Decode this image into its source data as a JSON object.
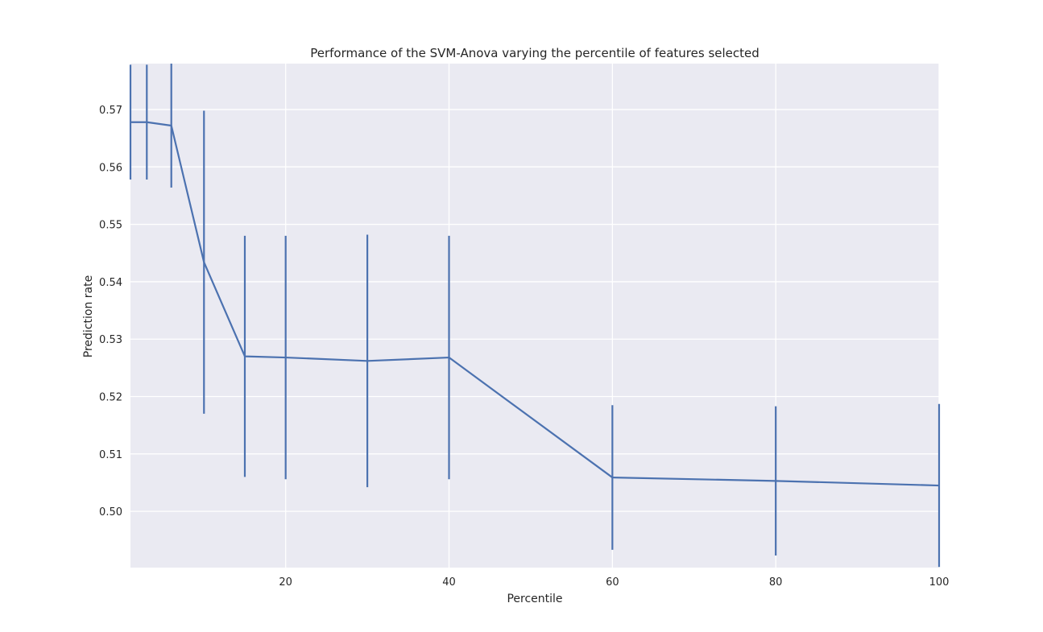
{
  "chart_data": {
    "type": "line",
    "title": "Performance of the SVM-Anova varying the percentile of features selected",
    "xlabel": "Percentile",
    "ylabel": "Prediction rate",
    "xlim": [
      1,
      100
    ],
    "ylim": [
      0.4902,
      0.578
    ],
    "xticks": [
      20,
      40,
      60,
      80,
      100
    ],
    "yticks": [
      0.5,
      0.51,
      0.52,
      0.53,
      0.54,
      0.55,
      0.56,
      0.57
    ],
    "ytick_labels": [
      "0.50",
      "0.51",
      "0.52",
      "0.53",
      "0.54",
      "0.55",
      "0.56",
      "0.57"
    ],
    "grid": true,
    "series": [
      {
        "x": [
          1,
          3,
          6,
          10,
          15,
          20,
          30,
          40,
          60,
          80,
          100
        ],
        "y": [
          0.5678,
          0.5678,
          0.5672,
          0.5434,
          0.527,
          0.5268,
          0.5262,
          0.5268,
          0.5059,
          0.5053,
          0.5045
        ],
        "err": [
          0.01,
          0.01,
          0.0108,
          0.0264,
          0.021,
          0.0212,
          0.022,
          0.0212,
          0.0126,
          0.013,
          0.0142
        ],
        "color": "#4c72b0"
      }
    ]
  }
}
